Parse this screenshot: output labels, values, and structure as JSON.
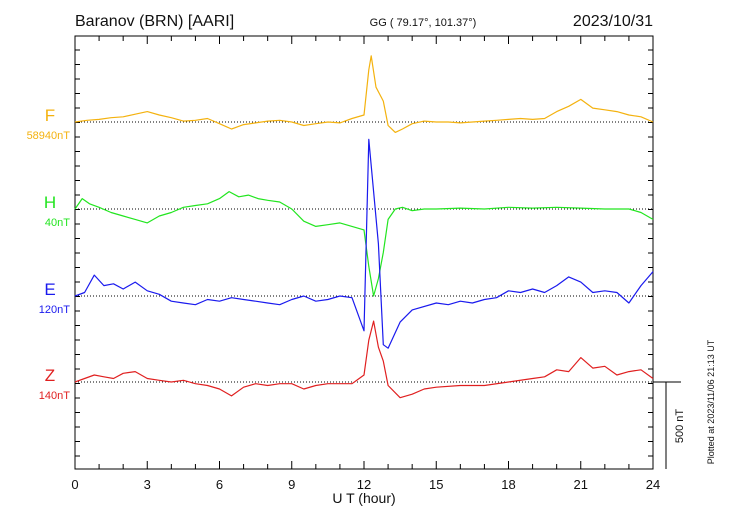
{
  "header": {
    "station": "Baranov (BRN)  [AARI]",
    "coords": "GG ( 79.17°, 101.37°)",
    "date": "2023/10/31"
  },
  "footer_note": "Plotted at 2023/11/06 21:13 UT",
  "scale_label": "500 nT",
  "chart_data": {
    "type": "line",
    "xlabel": "U T (hour)",
    "xlim": [
      0,
      24
    ],
    "xticks": [
      "0",
      "3",
      "6",
      "9",
      "12",
      "15",
      "18",
      "21",
      "24"
    ],
    "grid": "dotted horizontal baselines",
    "scale_bar_nT": 500,
    "series": [
      {
        "name": "F",
        "baseline": "58940nT",
        "color": "#f4b20f",
        "x": [
          0,
          0.5,
          1,
          1.5,
          2,
          2.5,
          3,
          3.5,
          4,
          4.5,
          5,
          5.5,
          6,
          6.5,
          7,
          7.5,
          8,
          8.5,
          9,
          9.5,
          10,
          10.5,
          11,
          11.5,
          12,
          12.2,
          12.3,
          12.5,
          12.8,
          13,
          13.3,
          13.6,
          14,
          14.5,
          15,
          15.5,
          16,
          16.5,
          17,
          17.5,
          18,
          18.5,
          19,
          19.5,
          20,
          20.5,
          21,
          21.5,
          22,
          22.5,
          23,
          23.5,
          24
        ],
        "values": [
          0,
          10,
          15,
          25,
          30,
          45,
          60,
          40,
          25,
          5,
          10,
          20,
          -10,
          -40,
          -15,
          -5,
          5,
          10,
          0,
          -20,
          -10,
          0,
          -5,
          20,
          40,
          300,
          380,
          200,
          120,
          -20,
          -60,
          -40,
          -10,
          5,
          0,
          0,
          -5,
          0,
          5,
          10,
          15,
          20,
          15,
          20,
          60,
          90,
          130,
          80,
          70,
          60,
          40,
          30,
          0
        ]
      },
      {
        "name": "H",
        "baseline": "40nT",
        "color": "#22e51f",
        "x": [
          0,
          0.3,
          0.6,
          1,
          1.5,
          2,
          2.5,
          3,
          3.5,
          4,
          4.5,
          5,
          5.5,
          6,
          6.4,
          6.8,
          7.2,
          7.6,
          8,
          8.5,
          9,
          9.5,
          10,
          10.5,
          11,
          11.5,
          12,
          12.2,
          12.4,
          12.6,
          12.8,
          13,
          13.3,
          13.6,
          14,
          14.5,
          15,
          16,
          17,
          18,
          19,
          20,
          21,
          22,
          23,
          23.5,
          24
        ],
        "values": [
          0,
          60,
          30,
          10,
          -20,
          -40,
          -60,
          -80,
          -40,
          -20,
          10,
          20,
          30,
          60,
          100,
          70,
          80,
          60,
          50,
          40,
          0,
          -70,
          -100,
          -90,
          -80,
          -100,
          -120,
          -330,
          -500,
          -400,
          -250,
          -60,
          0,
          10,
          -10,
          0,
          0,
          5,
          0,
          10,
          5,
          10,
          5,
          0,
          0,
          -20,
          -60
        ]
      },
      {
        "name": "E",
        "baseline": "120nT",
        "color": "#1a1aee",
        "x": [
          0,
          0.4,
          0.8,
          1.2,
          1.6,
          2,
          2.5,
          3,
          3.5,
          4,
          4.5,
          5,
          5.5,
          6,
          6.5,
          7,
          7.5,
          8,
          8.5,
          9,
          9.5,
          10,
          10.5,
          11,
          11.5,
          12,
          12.2,
          12.4,
          12.6,
          12.8,
          13,
          13.5,
          14,
          15,
          15.5,
          16,
          16.5,
          17,
          17.5,
          18,
          18.5,
          19,
          19.5,
          20,
          20.5,
          21,
          21.5,
          22,
          22.5,
          23,
          23.5,
          24
        ],
        "values": [
          0,
          20,
          120,
          60,
          70,
          40,
          80,
          30,
          10,
          -30,
          -40,
          -50,
          -20,
          -30,
          -10,
          -20,
          -30,
          -40,
          -50,
          -20,
          0,
          -30,
          -20,
          0,
          -10,
          -200,
          900,
          600,
          300,
          -280,
          -300,
          -150,
          -80,
          -40,
          -50,
          -30,
          -40,
          -20,
          -10,
          30,
          20,
          40,
          20,
          60,
          110,
          80,
          20,
          30,
          20,
          -40,
          60,
          140
        ]
      },
      {
        "name": "Z",
        "baseline": "140nT",
        "color": "#e02020",
        "x": [
          0,
          0.4,
          0.8,
          1.2,
          1.6,
          2,
          2.5,
          3,
          3.5,
          4,
          4.5,
          5,
          5.5,
          6,
          6.5,
          7,
          7.5,
          8,
          8.5,
          9,
          9.5,
          10,
          10.5,
          11,
          11.5,
          12,
          12.2,
          12.4,
          12.6,
          12.8,
          13,
          13.5,
          14,
          14.5,
          15,
          16,
          17,
          18,
          19,
          19.5,
          20,
          20.5,
          21,
          21.5,
          22,
          22.5,
          23,
          23.5,
          24
        ],
        "values": [
          0,
          20,
          40,
          30,
          20,
          50,
          60,
          20,
          10,
          0,
          10,
          -10,
          -20,
          -40,
          -80,
          -30,
          -10,
          -20,
          -10,
          -10,
          -40,
          -20,
          -10,
          -10,
          -10,
          40,
          240,
          350,
          200,
          120,
          -20,
          -90,
          -70,
          -40,
          -30,
          -20,
          -20,
          0,
          20,
          30,
          70,
          60,
          140,
          80,
          90,
          40,
          60,
          70,
          20
        ]
      }
    ]
  }
}
